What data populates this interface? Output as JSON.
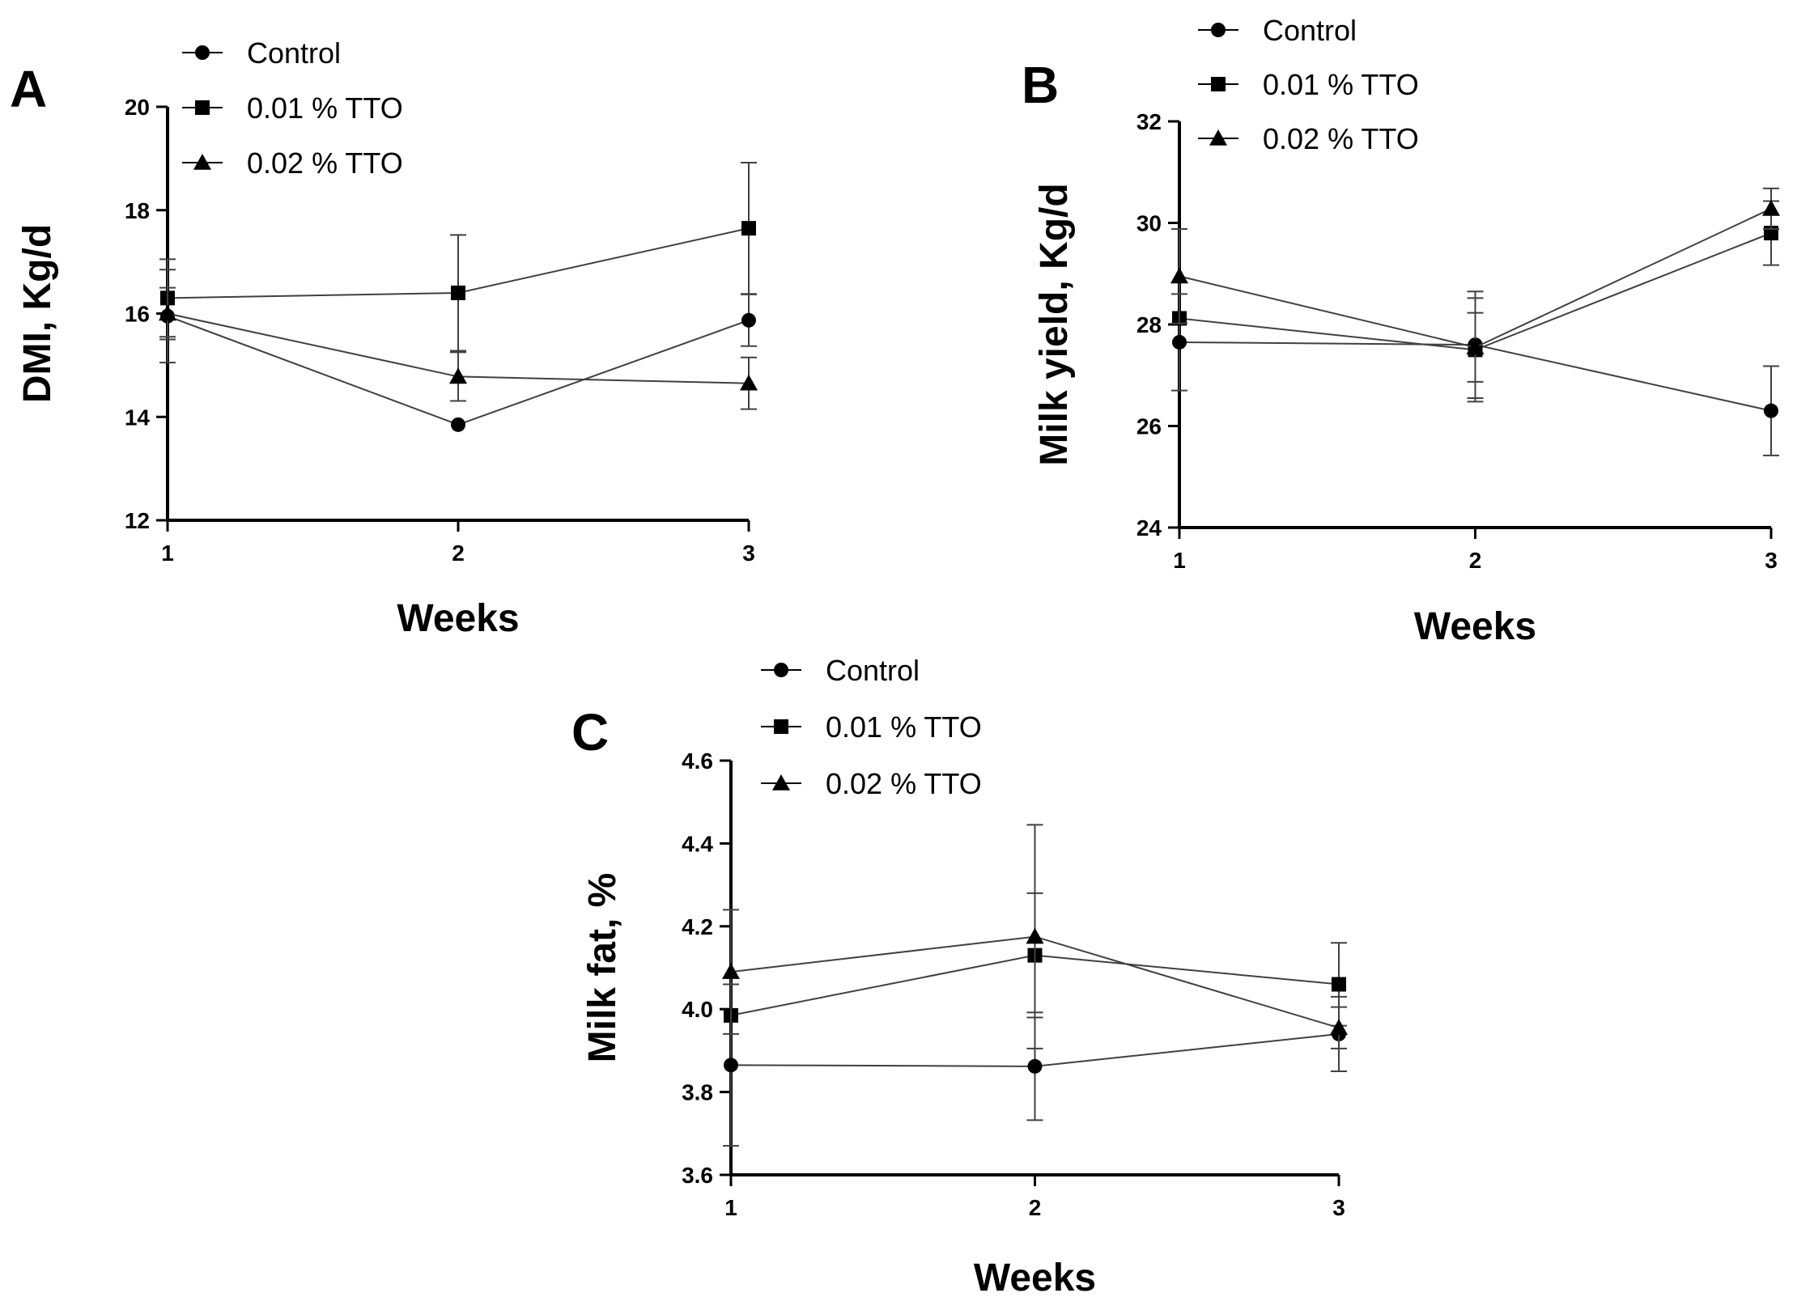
{
  "figure": {
    "background": "#ffffff",
    "ink_color": "#000000",
    "series_line_color": "#404040"
  },
  "chart_data": [
    {
      "type": "line",
      "panel": "A",
      "title": "",
      "xlabel": "Weeks",
      "ylabel": "DMI, Kg/d",
      "x": [
        1,
        2,
        3
      ],
      "xticks": [
        "1",
        "2",
        "3"
      ],
      "xlim": [
        1,
        3
      ],
      "ylim": [
        12,
        20
      ],
      "yticks": [
        12,
        14,
        16,
        18,
        20
      ],
      "legend_position": "top-center",
      "grid": false,
      "series": [
        {
          "name": "Control",
          "marker": "circle",
          "values": [
            15.95,
            13.85,
            15.87
          ],
          "errors": [
            0.9,
            0.0,
            0.5
          ]
        },
        {
          "name": "0.01 % TTO",
          "marker": "square",
          "values": [
            16.3,
            16.4,
            17.65
          ],
          "errors": [
            0.75,
            1.12,
            1.27
          ]
        },
        {
          "name": "0.02 % TTO",
          "marker": "triangle",
          "values": [
            16.0,
            14.78,
            14.65
          ],
          "errors": [
            0.5,
            0.47,
            0.5
          ]
        }
      ]
    },
    {
      "type": "line",
      "panel": "B",
      "title": "",
      "xlabel": "Weeks",
      "ylabel": "Milk yield, Kg/d",
      "x": [
        1,
        2,
        3
      ],
      "xticks": [
        "1",
        "2",
        "3"
      ],
      "xlim": [
        1,
        3
      ],
      "ylim": [
        24,
        32
      ],
      "yticks": [
        24,
        26,
        28,
        30,
        32
      ],
      "legend_position": "top-center",
      "grid": false,
      "series": [
        {
          "name": "Control",
          "marker": "circle",
          "values": [
            27.65,
            27.6,
            26.3
          ],
          "errors": [
            0.95,
            1.05,
            0.88
          ]
        },
        {
          "name": "0.01 % TTO",
          "marker": "square",
          "values": [
            28.12,
            27.5,
            29.8
          ],
          "errors": [
            0.0,
            1.02,
            0.63
          ]
        },
        {
          "name": "0.02 % TTO",
          "marker": "triangle",
          "values": [
            28.95,
            27.55,
            30.28
          ],
          "errors": [
            0.93,
            0.68,
            0.4
          ]
        }
      ]
    },
    {
      "type": "line",
      "panel": "C",
      "title": "",
      "xlabel": "Weeks",
      "ylabel": "Milk fat, %",
      "x": [
        1,
        2,
        3
      ],
      "xticks": [
        "1",
        "2",
        "3"
      ],
      "xlim": [
        1,
        3
      ],
      "ylim": [
        3.6,
        4.6
      ],
      "yticks": [
        3.6,
        3.8,
        4.0,
        4.2,
        4.4,
        4.6
      ],
      "legend_position": "top-center",
      "grid": false,
      "series": [
        {
          "name": "Control",
          "marker": "circle",
          "values": [
            3.865,
            3.862,
            3.94
          ],
          "errors": [
            0.195,
            0.13,
            0.09
          ]
        },
        {
          "name": "0.01 % TTO",
          "marker": "square",
          "values": [
            3.985,
            4.13,
            4.06
          ],
          "errors": [
            0.0,
            0.15,
            0.1
          ]
        },
        {
          "name": "0.02 % TTO",
          "marker": "triangle",
          "values": [
            4.09,
            4.175,
            3.955
          ],
          "errors": [
            0.15,
            0.27,
            0.05
          ]
        }
      ]
    }
  ]
}
